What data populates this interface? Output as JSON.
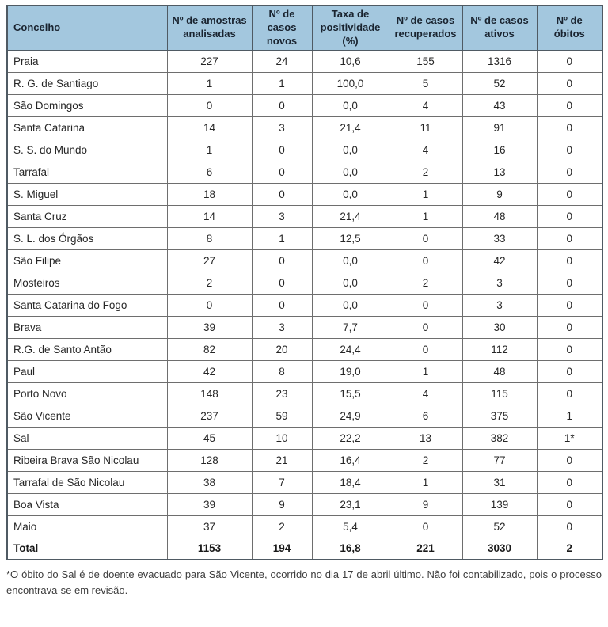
{
  "colors": {
    "header_bg": "#a3c7de",
    "header_text": "#1a2430",
    "body_text": "#262626",
    "border_inner": "#6e6e6e",
    "border_outer": "#4f5a63"
  },
  "table": {
    "columns": [
      {
        "key": "concelho",
        "label": "Concelho"
      },
      {
        "key": "amostras_analisadas",
        "label": "Nº de amostras analisadas"
      },
      {
        "key": "casos_novos",
        "label": "Nº de casos novos"
      },
      {
        "key": "taxa_positividade",
        "label": "Taxa de positividade (%)"
      },
      {
        "key": "casos_recuperados",
        "label": "Nº de casos recuperados"
      },
      {
        "key": "casos_ativos",
        "label": "Nº de casos ativos"
      },
      {
        "key": "obitos",
        "label": "Nº de óbitos"
      }
    ],
    "rows": [
      [
        "Praia",
        "227",
        "24",
        "10,6",
        "155",
        "1316",
        "0"
      ],
      [
        "R. G. de Santiago",
        "1",
        "1",
        "100,0",
        "5",
        "52",
        "0"
      ],
      [
        "São Domingos",
        "0",
        "0",
        "0,0",
        "4",
        "43",
        "0"
      ],
      [
        "Santa Catarina",
        "14",
        "3",
        "21,4",
        "11",
        "91",
        "0"
      ],
      [
        "S. S. do Mundo",
        "1",
        "0",
        "0,0",
        "4",
        "16",
        "0"
      ],
      [
        "Tarrafal",
        "6",
        "0",
        "0,0",
        "2",
        "13",
        "0"
      ],
      [
        "S. Miguel",
        "18",
        "0",
        "0,0",
        "1",
        "9",
        "0"
      ],
      [
        "Santa Cruz",
        "14",
        "3",
        "21,4",
        "1",
        "48",
        "0"
      ],
      [
        "S. L. dos Órgãos",
        "8",
        "1",
        "12,5",
        "0",
        "33",
        "0"
      ],
      [
        "São Filipe",
        "27",
        "0",
        "0,0",
        "0",
        "42",
        "0"
      ],
      [
        "Mosteiros",
        "2",
        "0",
        "0,0",
        "2",
        "3",
        "0"
      ],
      [
        "Santa Catarina do Fogo",
        "0",
        "0",
        "0,0",
        "0",
        "3",
        "0"
      ],
      [
        "Brava",
        "39",
        "3",
        "7,7",
        "0",
        "30",
        "0"
      ],
      [
        "R.G. de Santo Antão",
        "82",
        "20",
        "24,4",
        "0",
        "112",
        "0"
      ],
      [
        "Paul",
        "42",
        "8",
        "19,0",
        "1",
        "48",
        "0"
      ],
      [
        "Porto Novo",
        "148",
        "23",
        "15,5",
        "4",
        "115",
        "0"
      ],
      [
        "São Vicente",
        "237",
        "59",
        "24,9",
        "6",
        "375",
        "1"
      ],
      [
        "Sal",
        "45",
        "10",
        "22,2",
        "13",
        "382",
        "1*"
      ],
      [
        "Ribeira Brava São Nicolau",
        "128",
        "21",
        "16,4",
        "2",
        "77",
        "0"
      ],
      [
        "Tarrafal de São Nicolau",
        "38",
        "7",
        "18,4",
        "1",
        "31",
        "0"
      ],
      [
        "Boa Vista",
        "39",
        "9",
        "23,1",
        "9",
        "139",
        "0"
      ],
      [
        "Maio",
        "37",
        "2",
        "5,4",
        "0",
        "52",
        "0"
      ]
    ],
    "total_row": [
      "Total",
      "1153",
      "194",
      "16,8",
      "221",
      "3030",
      "2"
    ],
    "footnote": "*O óbito do Sal é de doente evacuado para São Vicente, ocorrido no dia 17 de abril último. Não foi contabilizado, pois o processo encontrava-se em revisão."
  }
}
